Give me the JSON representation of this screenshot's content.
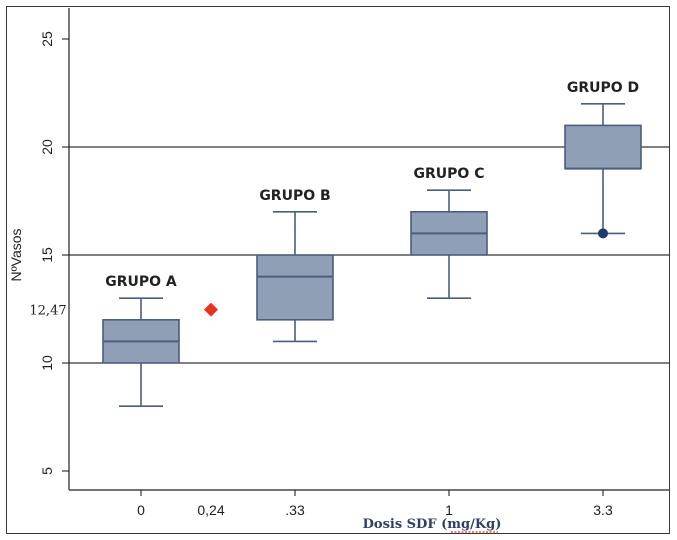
{
  "chart_data": {
    "type": "box",
    "ylabel": "NºVasos",
    "xlabel": "Dosis SDF (mg/Kg)",
    "ylim": [
      4,
      26
    ],
    "yticks": [
      5,
      10,
      15,
      20,
      25
    ],
    "gridlines_y": [
      10,
      15,
      20
    ],
    "categories": [
      "0",
      ".33",
      "1",
      "3.3"
    ],
    "x_values": [
      0,
      0.33,
      1,
      3.3
    ],
    "extra_tick": {
      "label": "0,24",
      "value": 0.24
    },
    "groups": [
      {
        "label": "GRUPO A",
        "x_label": "0",
        "whisker_low": 8,
        "q1": 10,
        "median": 11,
        "q3": 12,
        "whisker_high": 13,
        "outliers": []
      },
      {
        "label": "GRUPO B",
        "x_label": ".33",
        "whisker_low": 11,
        "q1": 12,
        "median": 14,
        "q3": 15,
        "whisker_high": 17,
        "outliers": []
      },
      {
        "label": "GRUPO C",
        "x_label": "1",
        "whisker_low": 13,
        "q1": 15,
        "median": 16,
        "q3": 17,
        "whisker_high": 18,
        "outliers": []
      },
      {
        "label": "GRUPO D",
        "x_label": "3.3",
        "whisker_low": 16,
        "q1": 19,
        "median": 19,
        "q3": 21,
        "whisker_high": 22,
        "outliers": [
          16
        ]
      }
    ],
    "marker": {
      "x_label": "0,24",
      "y": 12.47,
      "label": "12,47",
      "shape": "diamond",
      "color": "#e8321e"
    },
    "colors": {
      "box_fill": "#8e9fb6",
      "box_stroke": "#4a5e7e",
      "outlier": "#1e3a6a",
      "grid": "#000000"
    }
  }
}
